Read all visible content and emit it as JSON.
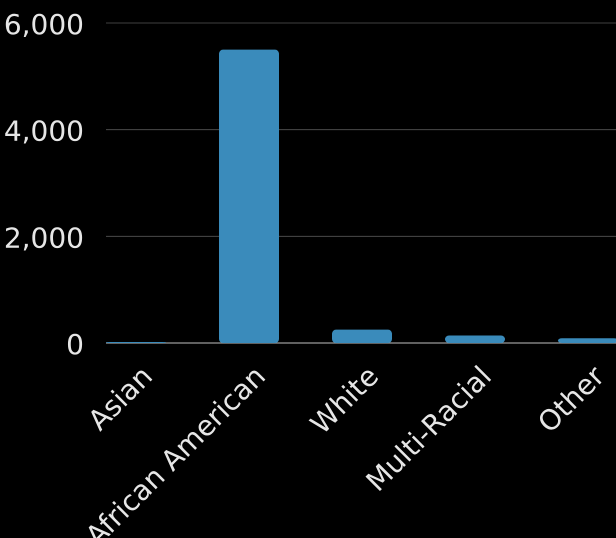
{
  "chart_data": {
    "type": "bar",
    "categories": [
      "Asian",
      "African American",
      "White",
      "Multi-Racial",
      "Other"
    ],
    "values": [
      15,
      5500,
      250,
      140,
      90
    ],
    "ylim": [
      0,
      6000
    ],
    "yticks": [
      "0",
      "2,000",
      "4,000",
      "6,000"
    ],
    "ytick_values": [
      0,
      2000,
      4000,
      6000
    ],
    "title": "",
    "xlabel": "",
    "ylabel": "",
    "grid": true,
    "legend": "none",
    "colors": {
      "background": "#000000",
      "bar": "#3a8bbb",
      "grid": "#555555",
      "text": "#e6e6e6"
    }
  }
}
